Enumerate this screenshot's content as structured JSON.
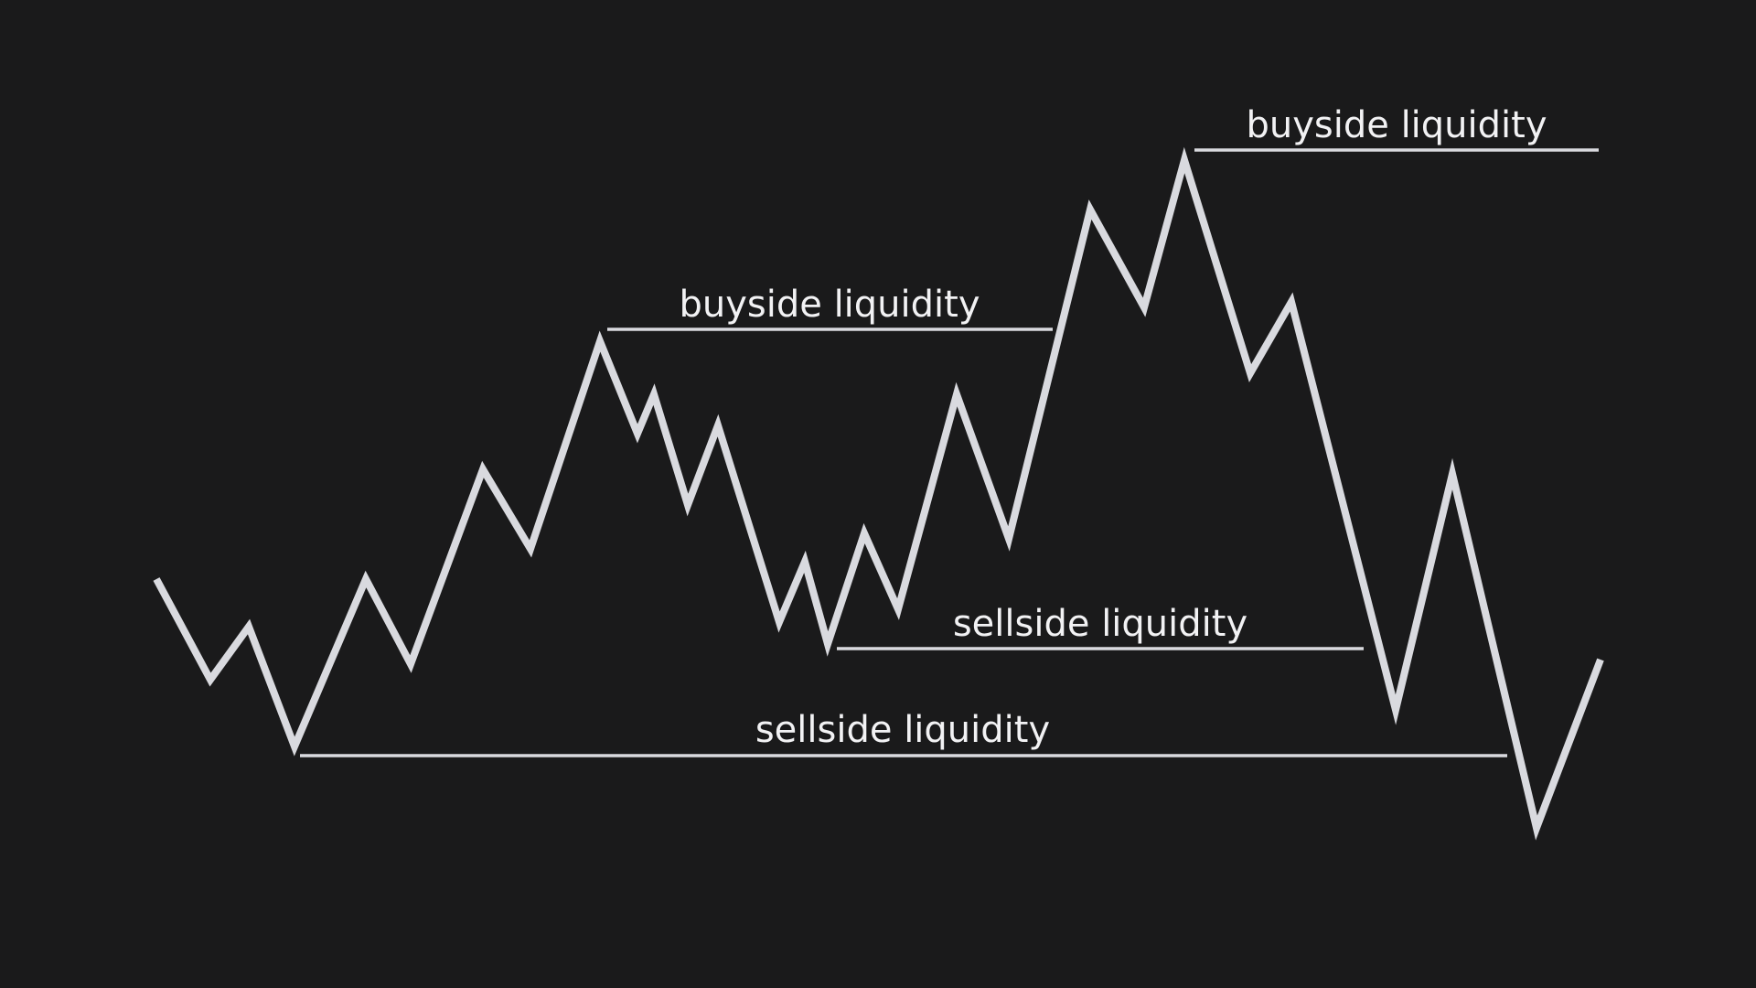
{
  "background_color": "#1a1a1b",
  "line_color": "#d9dadf",
  "text_color": "#f2f2f4",
  "levels": [
    {
      "id": "buyside-high",
      "label": "buyside liquidity"
    },
    {
      "id": "buyside-mid",
      "label": "buyside liquidity"
    },
    {
      "id": "sellside-mid",
      "label": "sellside liquidity"
    },
    {
      "id": "sellside-low",
      "label": "sellside liquidity"
    }
  ]
}
